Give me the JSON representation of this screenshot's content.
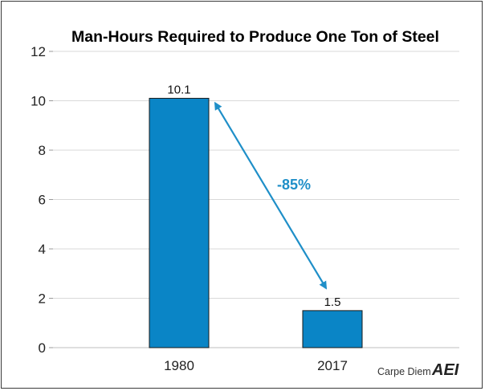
{
  "chart_data": {
    "type": "bar",
    "title": "Man-Hours Required to Produce One Ton of Steel",
    "categories": [
      "1980",
      "2017"
    ],
    "values": [
      10.1,
      1.5
    ],
    "data_labels": [
      "10.1",
      "1.5"
    ],
    "ylim": [
      0,
      12
    ],
    "yticks": [
      0,
      2,
      4,
      6,
      8,
      10,
      12
    ],
    "ytick_labels": [
      "0",
      "2",
      "4",
      "6",
      "8",
      "10",
      "12"
    ],
    "grid": true,
    "legend": "none",
    "annotation": {
      "text": "-85%",
      "from_category": "1980",
      "to_category": "2017"
    }
  },
  "colors": {
    "bar": "#0a85c6",
    "bar_edge": "#1a1a1a",
    "annotation": "#1f8fc8",
    "grid": "#d9d9d9"
  },
  "footer": {
    "source_label": "Carpe Diem",
    "logo_text": "AEI"
  }
}
